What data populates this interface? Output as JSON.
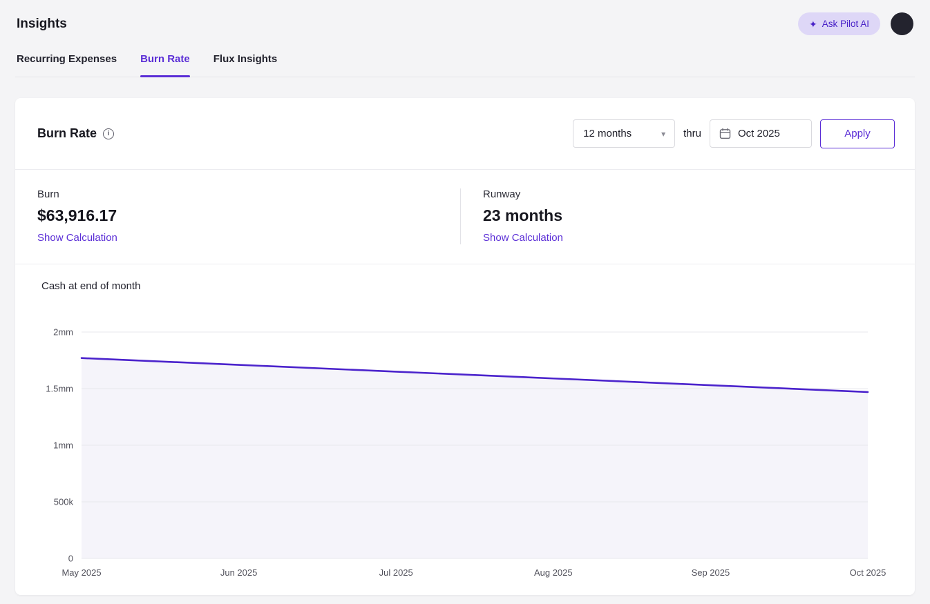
{
  "header": {
    "title": "Insights",
    "ask_pilot_label": "Ask Pilot AI"
  },
  "tabs": [
    {
      "label": "Recurring Expenses",
      "active": false
    },
    {
      "label": "Burn Rate",
      "active": true
    },
    {
      "label": "Flux Insights",
      "active": false
    }
  ],
  "card": {
    "title": "Burn Rate",
    "controls": {
      "period_select_value": "12 months",
      "thru_label": "thru",
      "date_value": "Oct 2025",
      "apply_label": "Apply"
    },
    "stats": {
      "burn": {
        "label": "Burn",
        "value": "$63,916.17",
        "link": "Show Calculation"
      },
      "runway": {
        "label": "Runway",
        "value": "23 months",
        "link": "Show Calculation"
      }
    }
  },
  "chart_data": {
    "type": "area",
    "title": "Cash at end of month",
    "x": [
      "May 2025",
      "Jun 2025",
      "Jul 2025",
      "Aug 2025",
      "Sep 2025",
      "Oct 2025"
    ],
    "series": [
      {
        "name": "Cash at end of month",
        "values": [
          1770000,
          1710000,
          1650000,
          1590000,
          1530000,
          1470000
        ]
      }
    ],
    "ylim": [
      0,
      2000000
    ],
    "yticks": [
      {
        "value": 0,
        "label": "0"
      },
      {
        "value": 500000,
        "label": "500k"
      },
      {
        "value": 1000000,
        "label": "1mm"
      },
      {
        "value": 1500000,
        "label": "1.5mm"
      },
      {
        "value": 2000000,
        "label": "2mm"
      }
    ],
    "grid": true,
    "legend": false,
    "line_color": "#4b23cc",
    "fill_color": "#f5f4fa",
    "grid_color": "#e7e7ec",
    "axis_text_color": "#52525c"
  },
  "icons": {
    "sparkle": "✦",
    "chevron_down": "▾",
    "info": "i"
  },
  "colors": {
    "accent": "#5a2dd6",
    "ask_pilot_bg": "#ded7f7",
    "page_bg": "#f4f4f6",
    "card_bg": "#ffffff"
  }
}
